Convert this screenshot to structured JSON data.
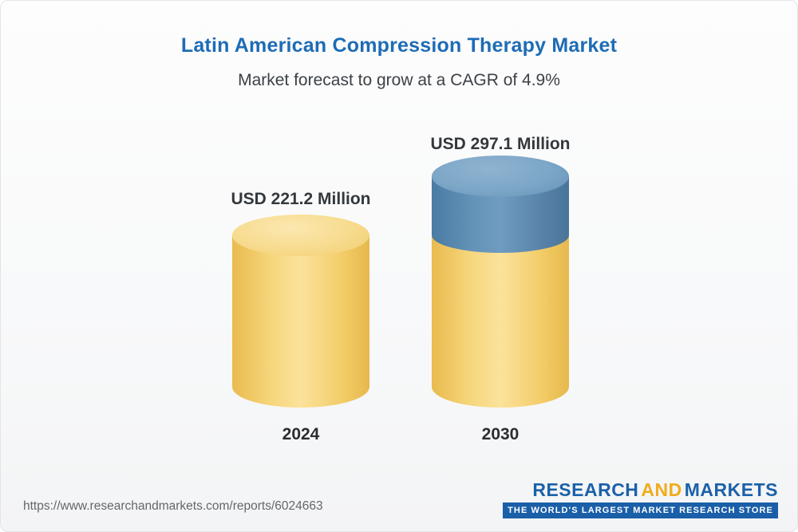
{
  "header": {
    "title": "Latin American Compression Therapy Market",
    "subtitle": "Market forecast to grow at a CAGR of 4.9%"
  },
  "chart_data": {
    "type": "bar",
    "subtype": "3d-cylinder",
    "title": "Latin American Compression Therapy Market",
    "subtitle": "Market forecast to grow at a CAGR of 4.9%",
    "unit": "USD Million",
    "categories": [
      "2024",
      "2030"
    ],
    "values": [
      221.2,
      297.1
    ],
    "value_labels": [
      "USD 221.2 Million",
      "USD 297.1 Million"
    ],
    "cagr_percent": 4.9,
    "ylim": [
      0,
      320
    ],
    "legend": "none",
    "grid": false,
    "colors": {
      "base_segment": "#F3CD68",
      "growth_segment": "#5D8FB5",
      "title": "#1D6CB5"
    }
  },
  "footer": {
    "source_url": "https://www.researchandmarkets.com/reports/6024663",
    "logo": {
      "word1": "RESEARCH",
      "word2": "AND",
      "word3": "MARKETS",
      "tagline": "THE WORLD'S LARGEST MARKET RESEARCH STORE"
    }
  }
}
